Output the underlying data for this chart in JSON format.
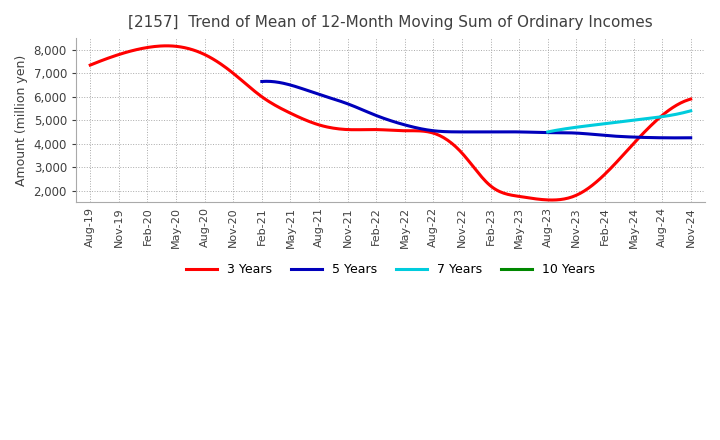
{
  "title": "[2157]  Trend of Mean of 12-Month Moving Sum of Ordinary Incomes",
  "ylabel": "Amount (million yen)",
  "ylim": [
    1500,
    8500
  ],
  "yticks": [
    2000,
    3000,
    4000,
    5000,
    6000,
    7000,
    8000
  ],
  "background_color": "#ffffff",
  "plot_bg_color": "#ffffff",
  "grid_color": "#aaaaaa",
  "title_color": "#404040",
  "line_colors": {
    "3y": "#ff0000",
    "5y": "#0000bb",
    "7y": "#00ccdd",
    "10y": "#008800"
  },
  "legend_labels": [
    "3 Years",
    "5 Years",
    "7 Years",
    "10 Years"
  ],
  "x_labels": [
    "Aug-19",
    "Nov-19",
    "Feb-20",
    "May-20",
    "Aug-20",
    "Nov-20",
    "Feb-21",
    "May-21",
    "Aug-21",
    "Nov-21",
    "Feb-22",
    "May-22",
    "Aug-22",
    "Nov-22",
    "Feb-23",
    "May-23",
    "Aug-23",
    "Nov-23",
    "Feb-24",
    "May-24",
    "Aug-24",
    "Nov-24"
  ],
  "series_3y": [
    7350,
    7800,
    8100,
    8150,
    7800,
    7000,
    6000,
    5300,
    4800,
    4600,
    4600,
    4550,
    4450,
    3600,
    2200,
    1750,
    1600,
    1800,
    2700,
    4000,
    5200,
    5900
  ],
  "series_5y": [
    null,
    null,
    null,
    null,
    null,
    null,
    6650,
    6500,
    6100,
    5700,
    5200,
    4800,
    4550,
    4500,
    4500,
    4500,
    4470,
    4450,
    4350,
    4280,
    4250,
    4250
  ],
  "series_7y": [
    null,
    null,
    null,
    null,
    null,
    null,
    null,
    null,
    null,
    null,
    null,
    null,
    null,
    null,
    null,
    null,
    4500,
    4700,
    4850,
    5000,
    5150,
    5400
  ],
  "series_10y": [
    null,
    null,
    null,
    null,
    null,
    null,
    null,
    null,
    null,
    null,
    null,
    null,
    null,
    null,
    null,
    null,
    null,
    null,
    null,
    null,
    null,
    null
  ]
}
